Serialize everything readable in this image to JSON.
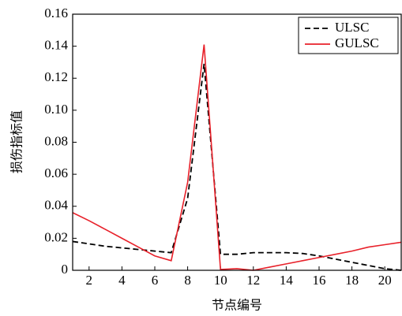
{
  "chart_data": {
    "type": "line",
    "x_label": "节点编号",
    "y_label": "损伤指标值",
    "x": [
      1,
      2,
      3,
      4,
      5,
      6,
      7,
      8,
      9,
      10,
      11,
      12,
      13,
      14,
      15,
      16,
      17,
      18,
      19,
      20,
      21
    ],
    "series": [
      {
        "name": "ULSC",
        "color": "#000000",
        "dash": "dashed",
        "values": [
          0.018,
          0.0165,
          0.015,
          0.014,
          0.013,
          0.012,
          0.011,
          0.045,
          0.129,
          0.01,
          0.01,
          0.011,
          0.011,
          0.011,
          0.0105,
          0.009,
          0.007,
          0.005,
          0.003,
          0.001,
          0
        ]
      },
      {
        "name": "GULSC",
        "color": "#e8212a",
        "dash": "solid",
        "values": [
          0.036,
          0.031,
          0.0255,
          0.02,
          0.0145,
          0.009,
          0.006,
          0.055,
          0.141,
          0.0005,
          0.001,
          0,
          0.002,
          0.004,
          0.006,
          0.008,
          0.01,
          0.012,
          0.0145,
          0.016,
          0.0175
        ]
      }
    ],
    "xlim": [
      1,
      21
    ],
    "xticks": [
      2,
      4,
      6,
      8,
      10,
      12,
      14,
      16,
      18,
      20
    ],
    "ylim": [
      0,
      0.16
    ],
    "yticks": [
      0,
      0.02,
      0.04,
      0.06,
      0.08,
      {
        "value": 0.1,
        "label": "0.10"
      },
      0.12,
      0.14,
      0.16
    ],
    "legend": "upper right"
  }
}
